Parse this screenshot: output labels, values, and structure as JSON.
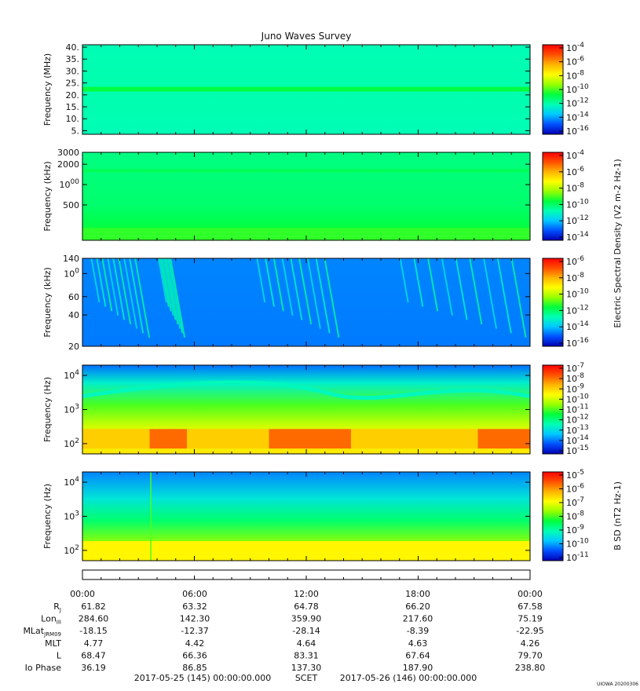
{
  "title": "Juno Waves Survey",
  "colors": {
    "spectrum": [
      "#0000b4",
      "#0050ff",
      "#00c8ff",
      "#00ffb4",
      "#00ff3c",
      "#96ff00",
      "#ffff00",
      "#ffb400",
      "#ff5000",
      "#ff0000"
    ]
  },
  "chart_data": [
    {
      "type": "heatmap",
      "name": "hfwbr",
      "ylabel": "Frequency (MHz)",
      "yscale": "linear",
      "ylim": [
        3.5,
        41
      ],
      "yticks": [
        "40.",
        "35.",
        "30.",
        "25.",
        "20.",
        "15.",
        "10.",
        "5."
      ],
      "ytick_values": [
        40,
        35,
        30,
        25,
        20,
        15,
        10,
        5
      ],
      "colorbar": {
        "label": "",
        "ticks": [
          "10-4",
          "10-6",
          "10-8",
          "10-10",
          "10-12",
          "10-14",
          "10-16"
        ]
      }
    },
    {
      "type": "heatmap",
      "name": "hf",
      "ylabel": "Frequency (kHz)",
      "yscale": "log",
      "ylim": [
        150,
        3000
      ],
      "yticks": [
        "3000",
        "2000",
        "1000",
        "500"
      ],
      "ytick_values": [
        3000,
        2000,
        1000,
        500
      ],
      "colorbar": {
        "label": "Electric Spectral Density (V2 m-2 Hz-1)",
        "ticks": [
          "10-4",
          "10-6",
          "10-8",
          "10-10",
          "10-12",
          "10-14"
        ]
      }
    },
    {
      "type": "heatmap",
      "name": "lf",
      "ylabel": "Frequency (kHz)",
      "yscale": "log",
      "ylim": [
        20,
        140
      ],
      "yticks": [
        "140",
        "100",
        "60",
        "40",
        "20"
      ],
      "ytick_values": [
        140,
        100,
        60,
        40,
        20
      ],
      "colorbar": {
        "label": "",
        "ticks": [
          "10-6",
          "10-8",
          "10-10",
          "10-12",
          "10-14",
          "10-16"
        ]
      }
    },
    {
      "type": "heatmap",
      "name": "e-vlf",
      "ylabel": "Frequency (Hz)",
      "yscale": "log",
      "ylim": [
        50,
        20000
      ],
      "yticks": [
        "10^4",
        "10^3",
        "10^2"
      ],
      "ytick_values": [
        10000,
        1000,
        100
      ],
      "colorbar": {
        "label": "",
        "ticks": [
          "10-7",
          "10-8",
          "10-9",
          "10-10",
          "10-11",
          "10-12",
          "10-13",
          "10-14",
          "10-15"
        ]
      }
    },
    {
      "type": "heatmap",
      "name": "b-vlf",
      "ylabel": "Frequency (Hz)",
      "yscale": "log",
      "ylim": [
        50,
        20000
      ],
      "yticks": [
        "10^4",
        "10^3",
        "10^2"
      ],
      "ytick_values": [
        10000,
        1000,
        100
      ],
      "colorbar": {
        "label": "B SD (nT2 Hz-1)",
        "ticks": [
          "10-5",
          "10-6",
          "10-7",
          "10-8",
          "10-9",
          "10-10",
          "10-11"
        ]
      }
    }
  ],
  "time_axis": {
    "ticks": [
      "00:00",
      "06:00",
      "12:00",
      "18:00",
      "00:00"
    ],
    "rows": [
      {
        "label": "RJ",
        "values": [
          "61.82",
          "63.32",
          "64.78",
          "66.20",
          "67.58"
        ]
      },
      {
        "label": "LonIII",
        "values": [
          "284.60",
          "142.30",
          "359.90",
          "217.60",
          "75.19"
        ]
      },
      {
        "label": "MLatJRM09",
        "values": [
          "-18.15",
          "-12.37",
          "-28.14",
          "-8.39",
          "-22.95"
        ]
      },
      {
        "label": "MLT",
        "values": [
          "4.77",
          "4.42",
          "4.64",
          "4.63",
          "4.26"
        ]
      },
      {
        "label": "L",
        "values": [
          "68.47",
          "66.36",
          "83.31",
          "67.64",
          "79.70"
        ]
      },
      {
        "label": "Io Phase",
        "values": [
          "36.19",
          "86.85",
          "137.30",
          "187.90",
          "238.80"
        ]
      }
    ],
    "start": "2017-05-25 (145) 00:00:00.000",
    "frame": "SCET",
    "end": "2017-05-26 (146) 00:00:00.000"
  },
  "stamp": "UIOWA 20200306"
}
